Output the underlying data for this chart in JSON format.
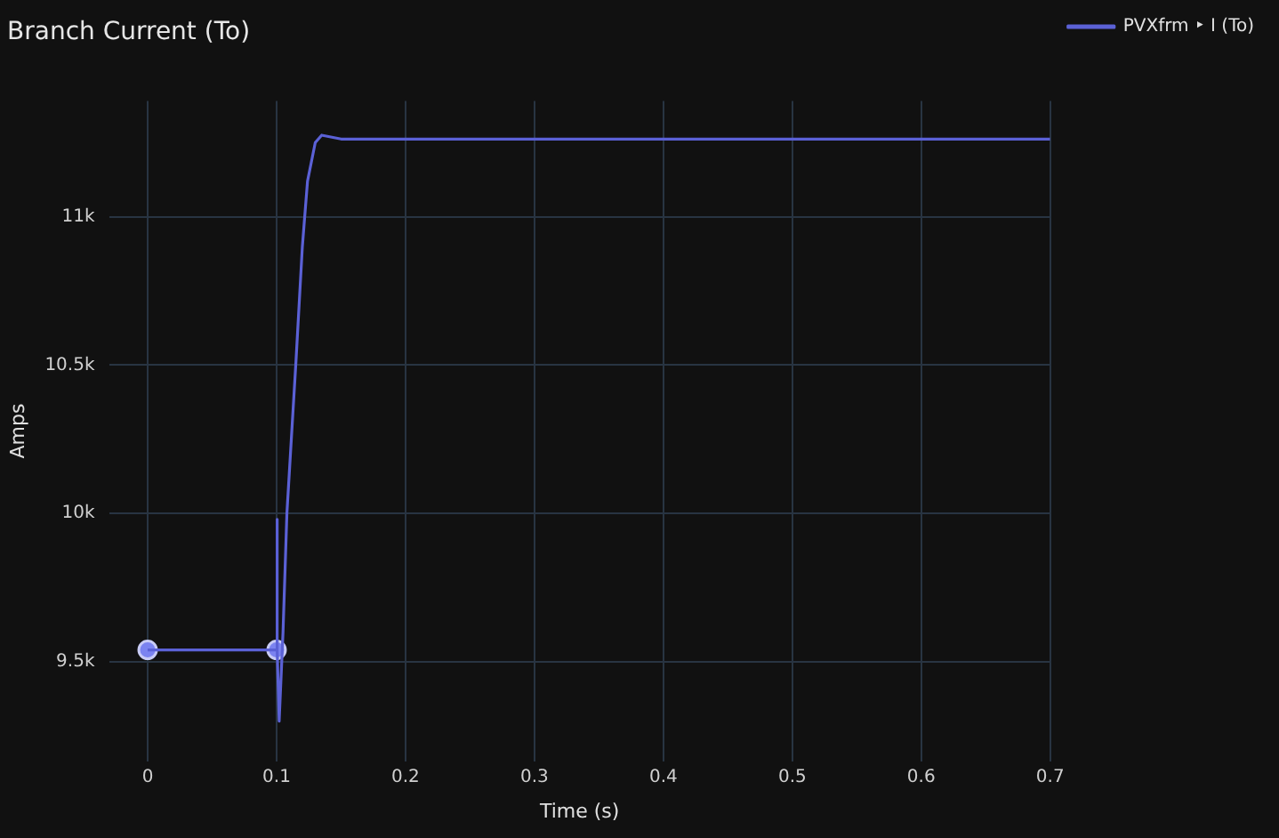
{
  "chart_data": {
    "type": "line",
    "title": "Branch Current (To)",
    "xlabel": "Time (s)",
    "ylabel": "Amps",
    "xlim": [
      -0.03,
      0.7
    ],
    "xticks": [
      0,
      0.1,
      0.2,
      0.3,
      0.4,
      0.5,
      0.6,
      0.7
    ],
    "ylim": [
      9165,
      11390
    ],
    "yticks": [
      {
        "value": 9500,
        "label": "9.5k"
      },
      {
        "value": 10000,
        "label": "10k"
      },
      {
        "value": 10500,
        "label": "10.5k"
      },
      {
        "value": 11000,
        "label": "11k"
      }
    ],
    "grid": true,
    "legend": "top right",
    "marker": "none",
    "line_style": "solid",
    "series": [
      {
        "name": "PVXfrm ‣ I (To)",
        "color": "#5b61d6",
        "x": [
          0,
          0.1,
          0.1003,
          0.1006,
          0.102,
          0.105,
          0.108,
          0.115,
          0.12,
          0.124,
          0.13,
          0.135,
          0.15,
          0.7
        ],
        "values": [
          9540,
          9540,
          9980,
          9540,
          9300,
          9600,
          10000,
          10510,
          10900,
          11120,
          11250,
          11275,
          11262,
          11262
        ]
      },
      {
        "type": "scatter",
        "color": "#7b83f0",
        "marker": "circle",
        "x": [
          0,
          0.1
        ],
        "values": [
          9540,
          9540
        ]
      }
    ]
  }
}
